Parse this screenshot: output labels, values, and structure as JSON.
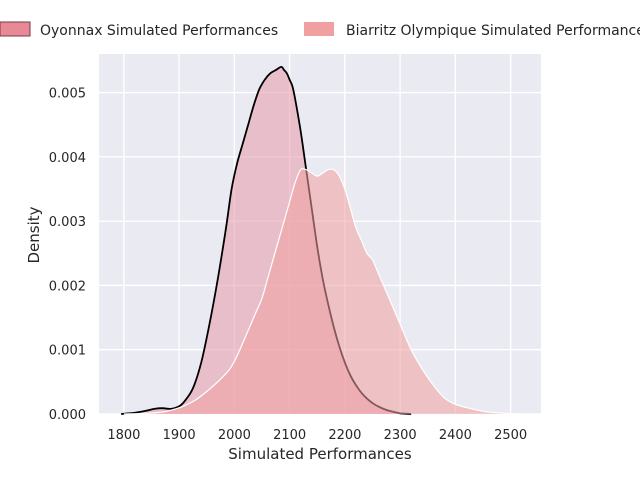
{
  "chart_data": {
    "type": "area",
    "title": "",
    "xlabel": "Simulated Performances",
    "ylabel": "Density",
    "xlim": [
      1755,
      2555
    ],
    "ylim": [
      0,
      0.0056
    ],
    "grid": true,
    "legend_position": "top, above plot",
    "x_ticks": [
      1800,
      1900,
      2000,
      2100,
      2200,
      2300,
      2400,
      2500
    ],
    "y_ticks": [
      0,
      0.001,
      0.002,
      0.003,
      0.004,
      0.005
    ],
    "x_tick_labels": [
      "1800",
      "1900",
      "2000",
      "2100",
      "2200",
      "2300",
      "2400",
      "2500"
    ],
    "y_tick_labels": [
      "0.000",
      "0.001",
      "0.002",
      "0.003",
      "0.004",
      "0.005"
    ],
    "series": [
      {
        "name": "Oyonnax Simulated Performances",
        "color": "#e8a0b0",
        "edge_color": "#000000",
        "x": [
          1795,
          1820,
          1840,
          1855,
          1870,
          1885,
          1900,
          1910,
          1925,
          1940,
          1955,
          1970,
          1985,
          1995,
          2005,
          2015,
          2025,
          2035,
          2045,
          2055,
          2065,
          2075,
          2085,
          2090,
          2095,
          2100,
          2105,
          2110,
          2120,
          2130,
          2140,
          2150,
          2160,
          2170,
          2180,
          2190,
          2200,
          2210,
          2220,
          2230,
          2240,
          2250,
          2260,
          2270,
          2280,
          2290,
          2300,
          2310,
          2320
        ],
        "y": [
          0.0,
          2e-05,
          5e-05,
          8e-05,
          9e-05,
          8e-05,
          0.00012,
          0.0002,
          0.0004,
          0.0008,
          0.0014,
          0.0021,
          0.0029,
          0.0035,
          0.0039,
          0.0042,
          0.0045,
          0.0048,
          0.00505,
          0.0052,
          0.0053,
          0.00535,
          0.0054,
          0.00535,
          0.0053,
          0.0052,
          0.0051,
          0.0049,
          0.0044,
          0.0038,
          0.0032,
          0.0026,
          0.0021,
          0.0017,
          0.00135,
          0.00105,
          0.0008,
          0.0006,
          0.00045,
          0.00033,
          0.00024,
          0.00017,
          0.00012,
          8e-05,
          5e-05,
          3e-05,
          1e-05,
          5e-06,
          0.0
        ]
      },
      {
        "name": "Biarritz Olympique Simulated Performances",
        "color": "#f0a0a0",
        "edge_color": "#ffffff",
        "x": [
          1800,
          1840,
          1870,
          1890,
          1910,
          1930,
          1950,
          1970,
          1990,
          2000,
          2010,
          2020,
          2030,
          2040,
          2050,
          2060,
          2070,
          2080,
          2090,
          2100,
          2110,
          2120,
          2130,
          2140,
          2150,
          2160,
          2170,
          2180,
          2190,
          2200,
          2210,
          2220,
          2230,
          2240,
          2250,
          2260,
          2270,
          2280,
          2290,
          2300,
          2320,
          2340,
          2360,
          2380,
          2400,
          2420,
          2440,
          2460,
          2490,
          2520
        ],
        "y": [
          0.0,
          1e-05,
          3e-05,
          7e-05,
          0.00013,
          0.00022,
          0.00035,
          0.0005,
          0.00068,
          0.00082,
          0.001,
          0.0012,
          0.0014,
          0.0016,
          0.0018,
          0.0021,
          0.0024,
          0.0027,
          0.003,
          0.0033,
          0.0036,
          0.0038,
          0.0038,
          0.00375,
          0.0037,
          0.00375,
          0.0038,
          0.0038,
          0.0037,
          0.0035,
          0.0032,
          0.0029,
          0.0027,
          0.0025,
          0.0024,
          0.0022,
          0.002,
          0.0018,
          0.0016,
          0.0014,
          0.001,
          0.0007,
          0.00045,
          0.00025,
          0.00015,
          0.0001,
          6e-05,
          3e-05,
          1e-05,
          0.0
        ]
      }
    ]
  }
}
